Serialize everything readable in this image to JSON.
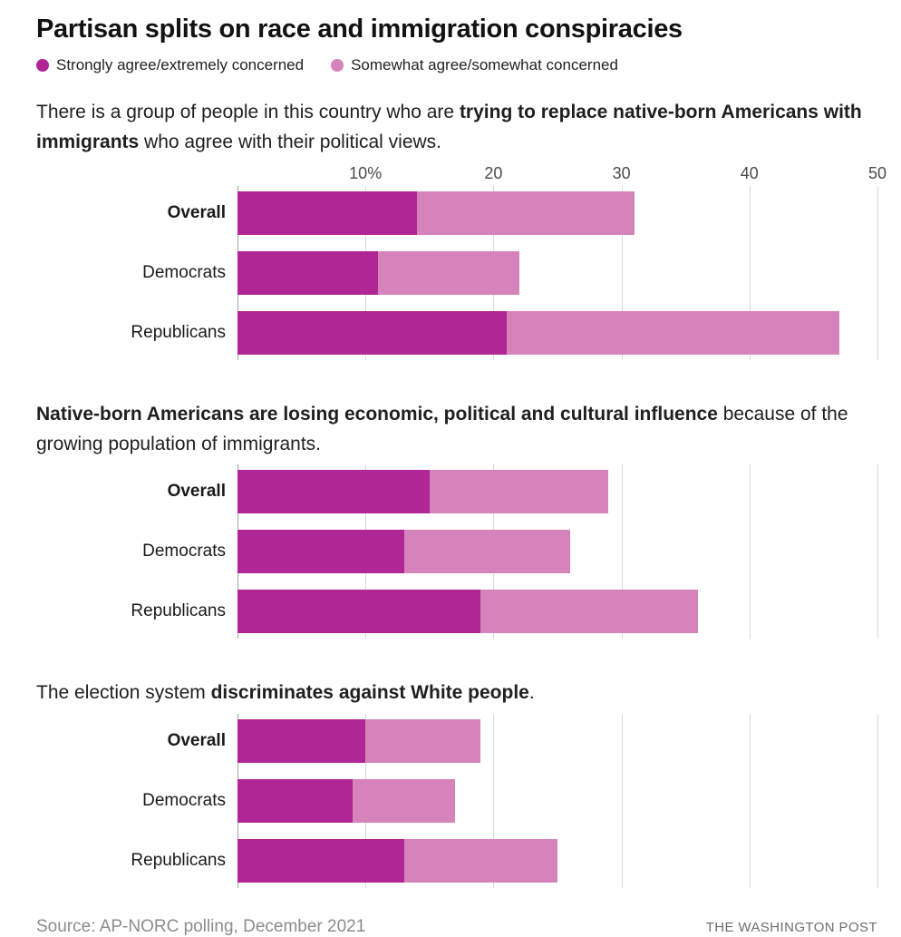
{
  "title": "Partisan splits on race and immigration conspiracies",
  "legend": {
    "items": [
      {
        "label": "Strongly agree/extremely concerned",
        "color": "#b02694"
      },
      {
        "label": "Somewhat agree/somewhat concerned",
        "color": "#d683bc"
      }
    ]
  },
  "footer": {
    "source": "Source: AP-NORC polling, December 2021",
    "credit": "THE WASHINGTON POST"
  },
  "chart_data": [
    {
      "type": "bar",
      "orientation": "horizontal",
      "stacked": true,
      "grid": true,
      "legend_position": "top",
      "title_segments": [
        {
          "text": "There is a group of people in this country who are ",
          "bold": false
        },
        {
          "text": "trying to replace native-born Americans with immigrants",
          "bold": true
        },
        {
          "text": " who agree with their political views.",
          "bold": false
        }
      ],
      "categories": [
        "Overall",
        "Democrats",
        "Republicans"
      ],
      "series": [
        {
          "name": "Strongly agree/extremely concerned",
          "color": "#b02694",
          "values": [
            14,
            11,
            21
          ]
        },
        {
          "name": "Somewhat agree/somewhat concerned",
          "color": "#d683bc",
          "values": [
            17,
            11,
            26
          ]
        }
      ],
      "totals": [
        31,
        22,
        47
      ],
      "xlim": [
        0,
        50
      ],
      "tick_values": [
        10,
        20,
        30,
        40,
        50
      ],
      "tick_labels": [
        "10%",
        "20",
        "30",
        "40",
        "50"
      ]
    },
    {
      "type": "bar",
      "orientation": "horizontal",
      "stacked": true,
      "grid": true,
      "title_segments": [
        {
          "text": "Native-born Americans are losing economic, political and cultural influence",
          "bold": true
        },
        {
          "text": " because of the growing population of immigrants.",
          "bold": false
        }
      ],
      "categories": [
        "Overall",
        "Democrats",
        "Republicans"
      ],
      "series": [
        {
          "name": "Strongly agree/extremely concerned",
          "color": "#b02694",
          "values": [
            15,
            13,
            19
          ]
        },
        {
          "name": "Somewhat agree/somewhat concerned",
          "color": "#d683bc",
          "values": [
            14,
            13,
            17
          ]
        }
      ],
      "totals": [
        29,
        26,
        36
      ],
      "xlim": [
        0,
        50
      ],
      "tick_values": [
        10,
        20,
        30,
        40,
        50
      ],
      "tick_labels": []
    },
    {
      "type": "bar",
      "orientation": "horizontal",
      "stacked": true,
      "grid": true,
      "title_segments": [
        {
          "text": "The election system ",
          "bold": false
        },
        {
          "text": "discriminates against White people",
          "bold": true
        },
        {
          "text": ".",
          "bold": false
        }
      ],
      "categories": [
        "Overall",
        "Democrats",
        "Republicans"
      ],
      "series": [
        {
          "name": "Strongly agree/extremely concerned",
          "color": "#b02694",
          "values": [
            10,
            9,
            13
          ]
        },
        {
          "name": "Somewhat agree/somewhat concerned",
          "color": "#d683bc",
          "values": [
            9,
            8,
            12
          ]
        }
      ],
      "totals": [
        19,
        17,
        25
      ],
      "xlim": [
        0,
        50
      ],
      "tick_values": [
        10,
        20,
        30,
        40,
        50
      ],
      "tick_labels": []
    }
  ]
}
